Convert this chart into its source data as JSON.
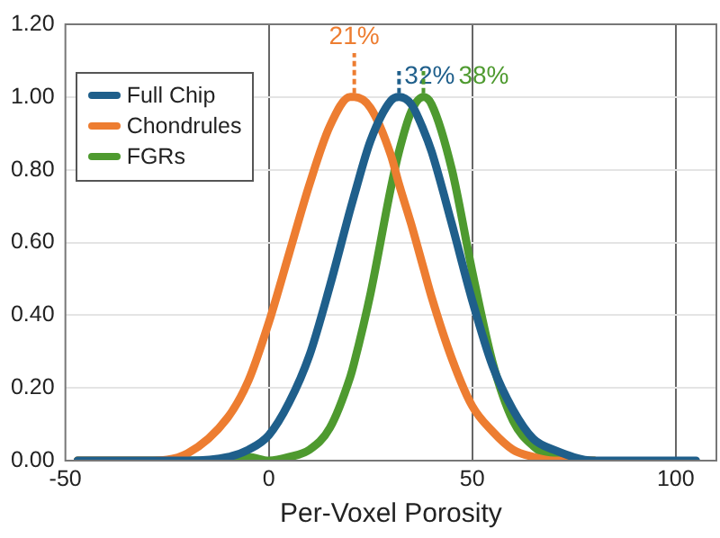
{
  "chart_data": {
    "type": "line",
    "xlabel": "Per-Voxel Porosity",
    "x": [
      -47,
      -40,
      -30,
      -20,
      -10,
      -5,
      0,
      5,
      10,
      15,
      20,
      21,
      25,
      30,
      32,
      35,
      38,
      40,
      45,
      50,
      55,
      60,
      65,
      70,
      80,
      90,
      105
    ],
    "series": [
      {
        "name": "Full Chip",
        "color": "#1f5f8b",
        "values": [
          0,
          0,
          0,
          0,
          0.01,
          0.03,
          0.07,
          0.16,
          0.29,
          0.48,
          0.69,
          0.73,
          0.88,
          0.99,
          1.0,
          0.98,
          0.91,
          0.85,
          0.65,
          0.44,
          0.26,
          0.14,
          0.06,
          0.03,
          0,
          0,
          0
        ]
      },
      {
        "name": "Chondrules",
        "color": "#ed7d31",
        "values": [
          0,
          0,
          0,
          0.02,
          0.12,
          0.22,
          0.38,
          0.57,
          0.76,
          0.92,
          1.0,
          1.0,
          0.97,
          0.84,
          0.76,
          0.65,
          0.53,
          0.45,
          0.28,
          0.15,
          0.08,
          0.03,
          0.01,
          0,
          0,
          null,
          null
        ]
      },
      {
        "name": "FGRs",
        "color": "#4e9a2f",
        "values": [
          0,
          0,
          0,
          0,
          0,
          0.01,
          0,
          0.01,
          0.03,
          0.09,
          0.23,
          0.27,
          0.46,
          0.75,
          0.85,
          0.96,
          1.0,
          0.98,
          0.8,
          0.52,
          0.27,
          0.11,
          0.04,
          0.01,
          0,
          null,
          null
        ]
      }
    ],
    "xlim": [
      -50,
      110
    ],
    "xticks": [
      -50,
      0,
      50,
      100
    ],
    "ylim": [
      0,
      1.2
    ],
    "yticks": [
      {
        "value": 0,
        "label": "0.00"
      },
      {
        "value": 0.2,
        "label": "0.20"
      },
      {
        "value": 0.4,
        "label": "0.40"
      },
      {
        "value": 0.6,
        "label": "0.60"
      },
      {
        "value": 0.8,
        "label": "0.80"
      },
      {
        "value": 1.0,
        "label": "1.00"
      },
      {
        "value": 1.2,
        "label": "1.20"
      }
    ],
    "grid": true,
    "legend": "top left",
    "marker": "none",
    "line_style": "solid",
    "annotations": [
      {
        "text": "21%",
        "x": 21,
        "y": 1.0
      },
      {
        "text": "32%",
        "x": 32,
        "y": 1.0
      },
      {
        "text": "38%",
        "x": 38,
        "y": 1.0
      }
    ]
  }
}
